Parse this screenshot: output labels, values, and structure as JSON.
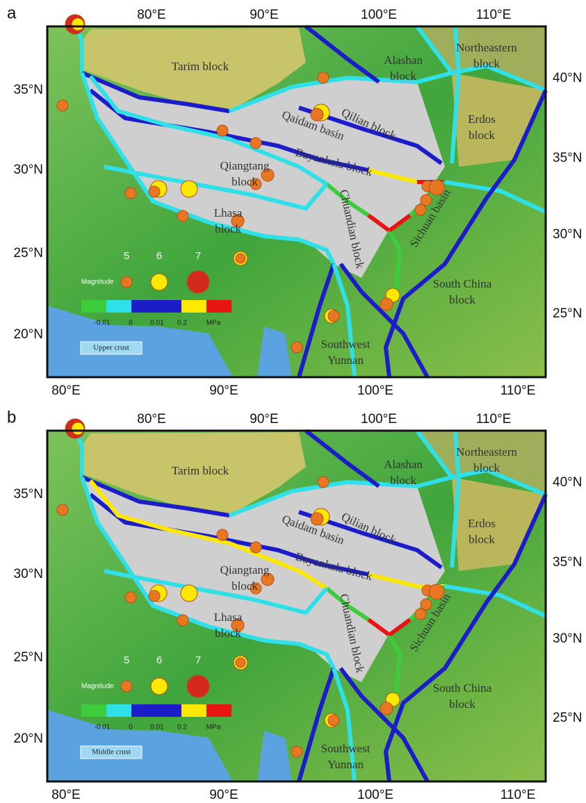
{
  "panels": [
    {
      "letter": "a",
      "top_ticks": [
        "80°E",
        "90°E",
        "100°E",
        "110°E"
      ],
      "bottom_ticks": [
        "80°E",
        "90°E",
        "100°E",
        "110°E"
      ],
      "left_ticks": [
        "35°N",
        "30°N",
        "25°N",
        "20°N"
      ],
      "right_ticks": [
        "40°N",
        "35°N",
        "30°N",
        "25°N"
      ],
      "blocks": [
        [
          "Tarim block"
        ],
        [
          "Alashan",
          "block"
        ],
        [
          "Northeastern",
          "block"
        ],
        [
          "Qilian block"
        ],
        [
          "Qaidam basin"
        ],
        [
          "Erdos",
          "block"
        ],
        [
          "Bayankala block"
        ],
        [
          "Qiangtang",
          "block"
        ],
        [
          "Lhasa",
          "block"
        ],
        [
          "Chuandian block"
        ],
        [
          "Sichuan basin"
        ],
        [
          "South China",
          "block"
        ],
        [
          "Southwest",
          "Yunnan"
        ]
      ],
      "legend": {
        "title": "Magnitude",
        "sizes": [
          "5",
          "6",
          "7"
        ],
        "scale_labels": [
          "-0.01",
          "0",
          "0.01",
          "0.2"
        ],
        "unit": "MPa"
      },
      "layer": "Upper crust"
    },
    {
      "letter": "b",
      "top_ticks": [
        "80°E",
        "90°E",
        "100°E",
        "110°E"
      ],
      "bottom_ticks": [
        "80°E",
        "90°E",
        "100°E",
        "110°E"
      ],
      "left_ticks": [
        "35°N",
        "30°N",
        "25°N",
        "20°N"
      ],
      "right_ticks": [
        "40°N",
        "35°N",
        "30°N",
        "25°N"
      ],
      "blocks": [
        [
          "Tarim block"
        ],
        [
          "Alashan",
          "block"
        ],
        [
          "Northeastern",
          "block"
        ],
        [
          "Qilian block"
        ],
        [
          "Qaidam basin"
        ],
        [
          "Erdos",
          "block"
        ],
        [
          "Bayankala block"
        ],
        [
          "Qiangtang",
          "block"
        ],
        [
          "Lhasa",
          "block"
        ],
        [
          "Chuandian block"
        ],
        [
          "Sichuan basin"
        ],
        [
          "South China",
          "block"
        ],
        [
          "Southwest",
          "Yunnan"
        ]
      ],
      "legend": {
        "title": "Magnitude",
        "sizes": [
          "5",
          "6",
          "7"
        ],
        "scale_labels": [
          "-0.01",
          "0",
          "0.01",
          "0.2"
        ],
        "unit": "MPa"
      },
      "layer": "Middle crust"
    }
  ]
}
